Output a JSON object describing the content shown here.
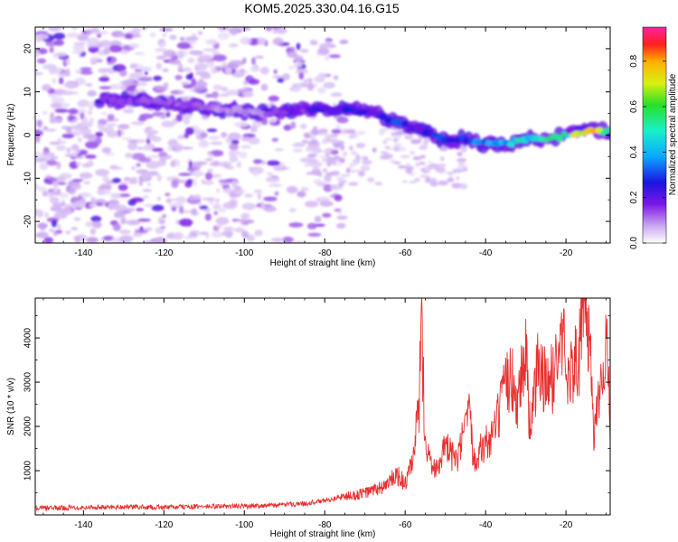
{
  "title": "KOM5.2025.330.04.16.G15",
  "chart_data": [
    {
      "type": "heatmap",
      "name": "spectrogram",
      "xlabel": "Height of straight line (km)",
      "ylabel": "Frequency (Hz)",
      "xlim": [
        -152,
        -9
      ],
      "ylim": [
        -25,
        25
      ],
      "x_ticks": [
        -140,
        -120,
        -100,
        -80,
        -60,
        -40,
        -20
      ],
      "y_ticks": [
        -20,
        -10,
        0,
        10,
        20
      ],
      "colorbar": {
        "label": "Normalized spectral amplitude",
        "range": [
          0,
          0.95
        ],
        "ticks": [
          0.0,
          0.2,
          0.4,
          0.6,
          0.8
        ]
      },
      "ridge_trace": {
        "x": [
          -135,
          -125,
          -115,
          -105,
          -95,
          -85,
          -75,
          -68,
          -62,
          -56,
          -50,
          -45,
          -40,
          -35,
          -30,
          -25,
          -20,
          -15,
          -10
        ],
        "frequency": [
          8,
          8,
          7,
          6,
          5,
          6,
          6,
          5,
          3,
          1,
          -1,
          -1,
          -2,
          -2,
          -1,
          -1,
          0,
          1,
          1
        ],
        "amplitude": [
          0.2,
          0.15,
          0.15,
          0.1,
          0.12,
          0.2,
          0.28,
          0.25,
          0.3,
          0.25,
          0.3,
          0.35,
          0.4,
          0.45,
          0.5,
          0.55,
          0.6,
          0.85,
          0.6
        ]
      }
    },
    {
      "type": "line",
      "name": "snr",
      "xlabel": "Height of straight line (km)",
      "ylabel": "SNR (10 * v/v)",
      "xlim": [
        -152,
        -9
      ],
      "ylim": [
        0,
        4900
      ],
      "x_ticks": [
        -140,
        -120,
        -100,
        -80,
        -60,
        -40,
        -20
      ],
      "y_ticks": [
        1000,
        2000,
        3000,
        4000
      ],
      "series": [
        {
          "name": "SNR",
          "color": "#e83030",
          "x": [
            -152,
            -145,
            -140,
            -130,
            -120,
            -110,
            -100,
            -92,
            -85,
            -80,
            -76,
            -72,
            -68,
            -65,
            -62,
            -60,
            -58,
            -56.5,
            -56,
            -55,
            -53,
            -50,
            -47,
            -45,
            -44,
            -43,
            -41,
            -38,
            -36,
            -34,
            -32,
            -30,
            -29,
            -27,
            -26,
            -24,
            -22,
            -21,
            -19,
            -17,
            -15.5,
            -15,
            -14,
            -13,
            -12,
            -11,
            -10,
            -9
          ],
          "values": [
            150,
            160,
            170,
            180,
            170,
            190,
            200,
            220,
            260,
            320,
            400,
            450,
            550,
            650,
            900,
            700,
            1200,
            2500,
            4300,
            1800,
            1000,
            1500,
            1200,
            2000,
            2200,
            1300,
            1500,
            1800,
            2500,
            3200,
            2600,
            3800,
            2000,
            3300,
            3100,
            2900,
            3600,
            4000,
            3200,
            3500,
            4500,
            4800,
            3800,
            1700,
            2800,
            3200,
            3900,
            2200
          ]
        }
      ]
    }
  ]
}
